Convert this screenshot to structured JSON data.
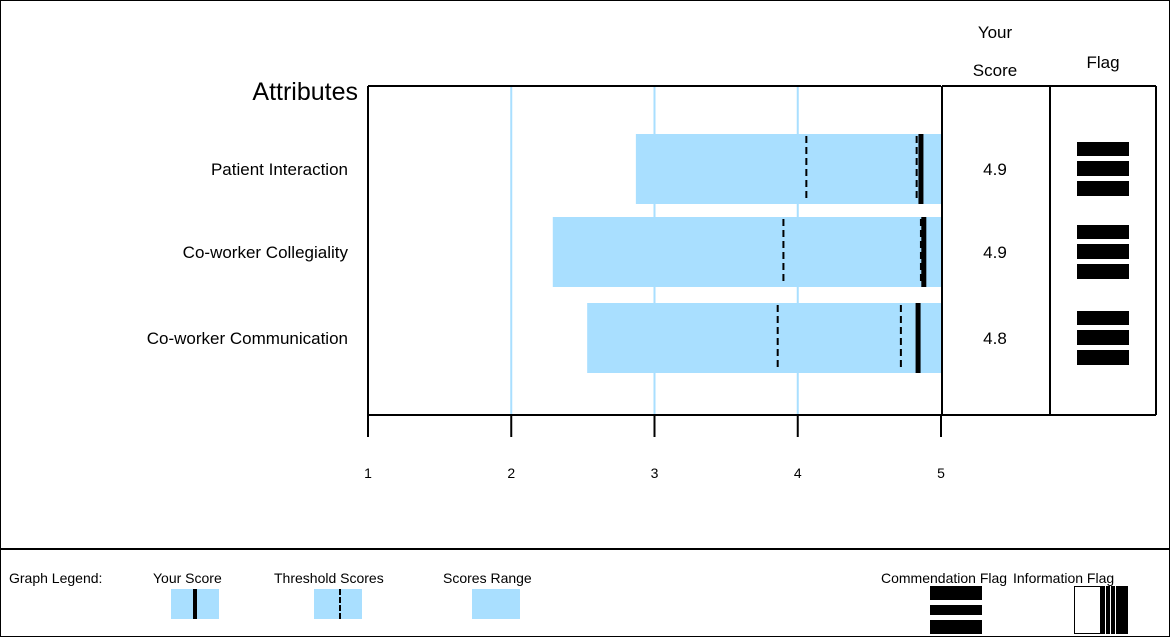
{
  "header": {
    "attributes_title": "Attributes",
    "score_col_line1": "Your",
    "score_col_line2": "Score",
    "flag_col": "Flag"
  },
  "colors": {
    "range_fill": "#a9dfff",
    "grid": "#a9dfff",
    "mark": "#000000"
  },
  "chart_data": {
    "type": "bar",
    "orientation": "horizontal",
    "title": "Attributes",
    "xlim": [
      1,
      5
    ],
    "xticks": [
      "1",
      "2",
      "3",
      "4",
      "5"
    ],
    "categories": [
      "Patient Interaction",
      "Co-worker Collegiality",
      "Co-worker Communication"
    ],
    "range_min": [
      2.87,
      2.29,
      2.53
    ],
    "range_max": [
      5.0,
      5.0,
      5.0
    ],
    "thresholds": [
      [
        4.06,
        4.83
      ],
      [
        3.9,
        4.86
      ],
      [
        3.86,
        4.72
      ]
    ],
    "your_score": [
      4.86,
      4.88,
      4.84
    ],
    "score_labels": [
      "4.9",
      "4.9",
      "4.8"
    ],
    "flags": [
      "commendation",
      "commendation",
      "commendation"
    ],
    "grid": true
  },
  "legend": {
    "title": "Graph Legend:",
    "your_score": "Your Score",
    "threshold_scores": "Threshold Scores",
    "scores_range": "Scores Range",
    "commendation_flag": "Commendation Flag",
    "information_flag": "Information Flag"
  }
}
